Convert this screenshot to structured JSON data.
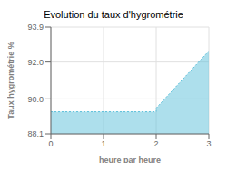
{
  "chart_data": {
    "type": "area",
    "title": "Evolution du taux d'hygrométrie",
    "x_label": "heure par heure",
    "y_label": "Taux hygrométrie %",
    "x": [
      0,
      2,
      2,
      3
    ],
    "values": [
      89.3,
      89.3,
      89.5,
      92.6
    ],
    "color": "#5bbfda",
    "line_style": "dotted",
    "xlim": [
      0,
      3
    ],
    "xticks": [
      0,
      1,
      2,
      3
    ],
    "ylim": [
      88.1,
      93.9
    ],
    "yticks": [
      88.1,
      {
        "value": 90,
        "label": "90.0"
      },
      {
        "value": 92,
        "label": "92.0"
      },
      93.9
    ],
    "grid": true
  }
}
